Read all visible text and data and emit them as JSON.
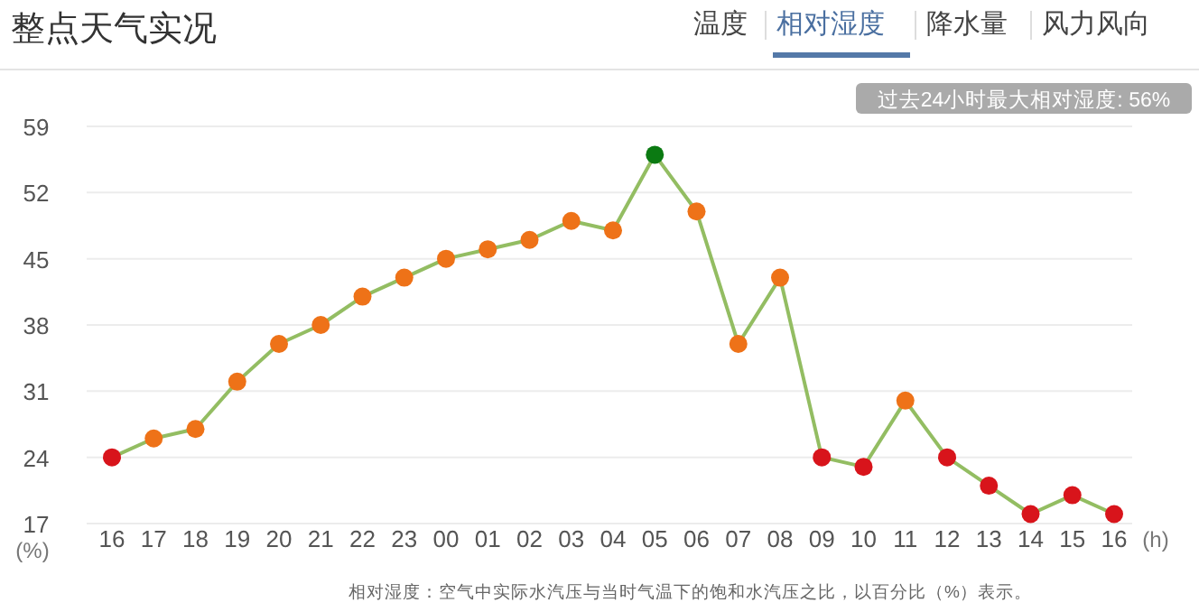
{
  "chart_data": {
    "type": "line",
    "title": "整点天气实况",
    "xlabel": "(h)",
    "ylabel": "(%)",
    "categories": [
      "16",
      "17",
      "18",
      "19",
      "20",
      "21",
      "22",
      "23",
      "00",
      "01",
      "02",
      "03",
      "04",
      "05",
      "06",
      "07",
      "08",
      "09",
      "10",
      "11",
      "12",
      "13",
      "14",
      "15",
      "16"
    ],
    "series": [
      {
        "color": "#93bd62",
        "values": [
          24,
          26,
          27,
          32,
          36,
          38,
          41,
          43,
          45,
          46,
          47,
          49,
          48,
          56,
          50,
          36,
          43,
          24,
          23,
          30,
          24,
          21,
          18,
          20,
          18
        ],
        "colors": [
          "#d8141b",
          "#ee7218",
          "#ee7218",
          "#ee7218",
          "#ee7218",
          "#ee7218",
          "#ee7218",
          "#ee7218",
          "#ee7218",
          "#ee7218",
          "#ee7218",
          "#ee7218",
          "#ee7218",
          "#0b7a12",
          "#ee7218",
          "#ee7218",
          "#ee7218",
          "#d8141b",
          "#d8141b",
          "#ee7218",
          "#d8141b",
          "#d8141b",
          "#d8141b",
          "#d8141b",
          "#d8141b"
        ]
      }
    ],
    "ylim": [
      17,
      59
    ],
    "yticks": [
      17,
      24,
      31,
      38,
      45,
      52,
      59
    ],
    "grid": "y",
    "marker": "circle",
    "line_style": "solid",
    "annotations": [
      "温度",
      "相对湿度",
      "降水量",
      "风力风向",
      "过去24小时最大相对湿度: 56%",
      "相对湿度：空气中实际水汽压与当时气温下的饱和水汽压之比，以百分比（%）表示。"
    ]
  }
}
